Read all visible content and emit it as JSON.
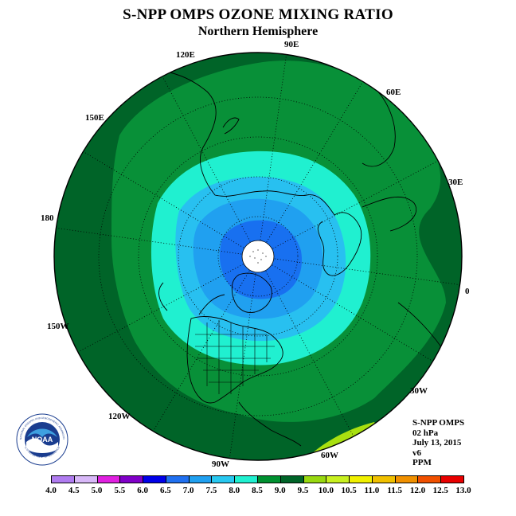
{
  "header": {
    "title": "S-NPP OMPS OZONE MIXING RATIO",
    "subtitle": "Northern Hemisphere"
  },
  "longitude_labels": {
    "lon_90e": "90E",
    "lon_120e": "120E",
    "lon_60e": "60E",
    "lon_150e": "150E",
    "lon_30e": "30E",
    "lon_180": "180",
    "lon_0": "0",
    "lon_150w": "150W",
    "lon_30w": "30W",
    "lon_120w": "120W",
    "lon_60w": "60W",
    "lon_90w": "90W"
  },
  "info": {
    "instrument": "S-NPP OMPS",
    "level": "02 hPa",
    "date": "July 13, 2015",
    "version": "v6",
    "units": "PPM"
  },
  "colorbar": {
    "ticks": [
      "4.0",
      "4.5",
      "5.0",
      "5.5",
      "6.0",
      "6.5",
      "7.0",
      "7.5",
      "8.0",
      "8.5",
      "9.0",
      "9.5",
      "10.0",
      "10.5",
      "11.0",
      "11.5",
      "12.0",
      "12.5",
      "13.0"
    ],
    "colors": [
      "#b07cf0",
      "#d8b8f8",
      "#e020e0",
      "#8000c8",
      "#0000e8",
      "#2070f0",
      "#20a0f0",
      "#28c8f0",
      "#20f0d0",
      "#009030",
      "#006428",
      "#98d810",
      "#c8f020",
      "#f0f000",
      "#f0c000",
      "#f09000",
      "#f05000",
      "#e80000",
      "#7a4a30"
    ]
  },
  "legend_colors": {
    "contour_6_0": "#1870f0",
    "contour_6_5": "#20a0f0",
    "contour_7_0": "#28c0f0",
    "contour_7_5": "#20f0d0",
    "contour_8_0": "#089038",
    "contour_8_5": "#006428",
    "contour_9_5": "#a8e010",
    "missing_pole": "#ffffff"
  },
  "logo": {
    "icon": "noaa-logo-icon",
    "text": "NOAA",
    "ring_text": "NATIONAL OCEANIC AND ATMOSPHERIC ADMINISTRATION",
    "ring_text_bottom": "U.S. DEPARTMENT OF COMMERCE"
  }
}
